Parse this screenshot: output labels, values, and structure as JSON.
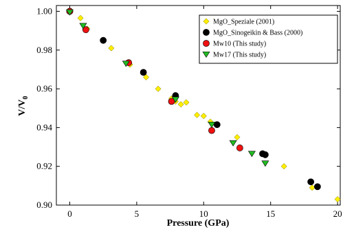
{
  "chart_data": {
    "type": "scatter",
    "xlabel": "Pressure (GPa)",
    "ylabel": "V/V",
    "ylabel_subscript": "0",
    "xlim": [
      -1,
      20.2
    ],
    "ylim": [
      0.9,
      1.003
    ],
    "xticks": [
      0,
      5,
      10,
      15,
      20
    ],
    "yticks": [
      0.9,
      0.92,
      0.94,
      0.96,
      0.98,
      1.0
    ],
    "ytick_labels": [
      "0.90",
      "0.92",
      "0.94",
      "0.96",
      "0.98",
      "1.00"
    ],
    "grid": false,
    "legend_position": "top-right",
    "series": [
      {
        "name": "MgO_Speziale (2001)",
        "marker": "diamond",
        "color": "#ffee00",
        "points": [
          [
            0.0,
            1.0
          ],
          [
            0.8,
            0.9965
          ],
          [
            1.3,
            0.991
          ],
          [
            3.1,
            0.981
          ],
          [
            4.5,
            0.9725
          ],
          [
            5.7,
            0.966
          ],
          [
            6.6,
            0.96
          ],
          [
            7.6,
            0.955
          ],
          [
            7.9,
            0.9535
          ],
          [
            8.3,
            0.952
          ],
          [
            8.7,
            0.953
          ],
          [
            9.5,
            0.9465
          ],
          [
            10.0,
            0.946
          ],
          [
            10.5,
            0.943
          ],
          [
            12.5,
            0.935
          ],
          [
            16.0,
            0.92
          ],
          [
            18.1,
            0.909
          ],
          [
            20.0,
            0.903
          ]
        ]
      },
      {
        "name": "MgO_Sinogeikin & Bass (2000)",
        "marker": "circle",
        "color": "#000000",
        "points": [
          [
            0.0,
            1.0
          ],
          [
            2.5,
            0.985
          ],
          [
            5.5,
            0.9685
          ],
          [
            7.9,
            0.9565
          ],
          [
            11.0,
            0.9415
          ],
          [
            14.4,
            0.9265
          ],
          [
            14.6,
            0.926
          ],
          [
            18.0,
            0.912
          ],
          [
            18.5,
            0.9095
          ]
        ]
      },
      {
        "name": "Mw10 (This study)",
        "marker": "circle",
        "color": "#ee1111",
        "points": [
          [
            0.0,
            1.0
          ],
          [
            1.2,
            0.9905
          ],
          [
            4.4,
            0.9735
          ],
          [
            7.6,
            0.9535
          ],
          [
            10.6,
            0.9385
          ],
          [
            12.7,
            0.9295
          ]
        ]
      },
      {
        "name": "Mw17 (This study)",
        "marker": "triangle-down",
        "color": "#22bb22",
        "points": [
          [
            0.0,
            0.9995
          ],
          [
            1.0,
            0.9925
          ],
          [
            4.2,
            0.973
          ],
          [
            7.9,
            0.9545
          ],
          [
            10.6,
            0.9415
          ],
          [
            12.2,
            0.932
          ],
          [
            13.6,
            0.9265
          ],
          [
            14.6,
            0.9215
          ]
        ]
      }
    ]
  }
}
